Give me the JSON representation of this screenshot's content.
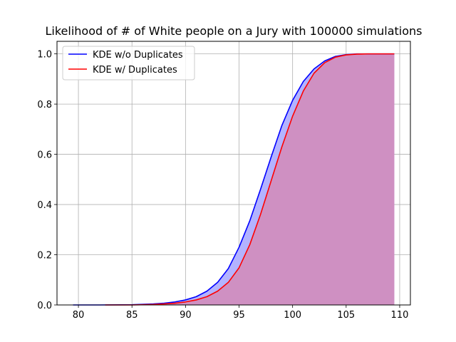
{
  "chart_data": {
    "type": "line",
    "title": "Likelihood of # of White people on a Jury with 100000 simulations",
    "xlabel": "",
    "ylabel": "",
    "xlim": [
      78,
      111
    ],
    "ylim": [
      0,
      1.05
    ],
    "xticks": [
      80,
      85,
      90,
      95,
      100,
      105,
      110
    ],
    "yticks": [
      0.0,
      0.2,
      0.4,
      0.6,
      0.8,
      1.0
    ],
    "xtick_labels": [
      "80",
      "85",
      "90",
      "95",
      "100",
      "105",
      "110"
    ],
    "ytick_labels": [
      "0.0",
      "0.2",
      "0.4",
      "0.6",
      "0.8",
      "1.0"
    ],
    "grid": true,
    "legend_position": "top-left",
    "series": [
      {
        "name": "KDE w/o Duplicates",
        "color": "#0000ff",
        "fill_color": "#b3b3ff",
        "x": [
          79.5,
          82,
          85,
          87,
          88,
          89,
          90,
          91,
          92,
          93,
          94,
          95,
          96,
          97,
          98,
          99,
          100,
          101,
          102,
          103,
          104,
          105,
          106,
          107,
          108,
          109.5
        ],
        "y": [
          0.0,
          0.0,
          0.001,
          0.004,
          0.007,
          0.012,
          0.02,
          0.033,
          0.055,
          0.09,
          0.145,
          0.23,
          0.335,
          0.46,
          0.59,
          0.715,
          0.815,
          0.89,
          0.94,
          0.972,
          0.99,
          0.997,
          1.0,
          1.0,
          1.0,
          1.0
        ]
      },
      {
        "name": "KDE w/ Duplicates",
        "color": "#ff0000",
        "fill_color": "#cf90c2",
        "x": [
          82.5,
          85,
          87,
          88,
          89,
          90,
          91,
          92,
          93,
          94,
          95,
          96,
          97,
          98,
          99,
          100,
          101,
          102,
          103,
          104,
          105,
          106,
          107,
          108,
          109.5
        ],
        "y": [
          0.0,
          0.0,
          0.002,
          0.004,
          0.007,
          0.012,
          0.02,
          0.033,
          0.055,
          0.09,
          0.148,
          0.24,
          0.36,
          0.495,
          0.63,
          0.752,
          0.852,
          0.923,
          0.965,
          0.987,
          0.996,
          0.999,
          1.0,
          1.0,
          1.0
        ]
      }
    ]
  }
}
